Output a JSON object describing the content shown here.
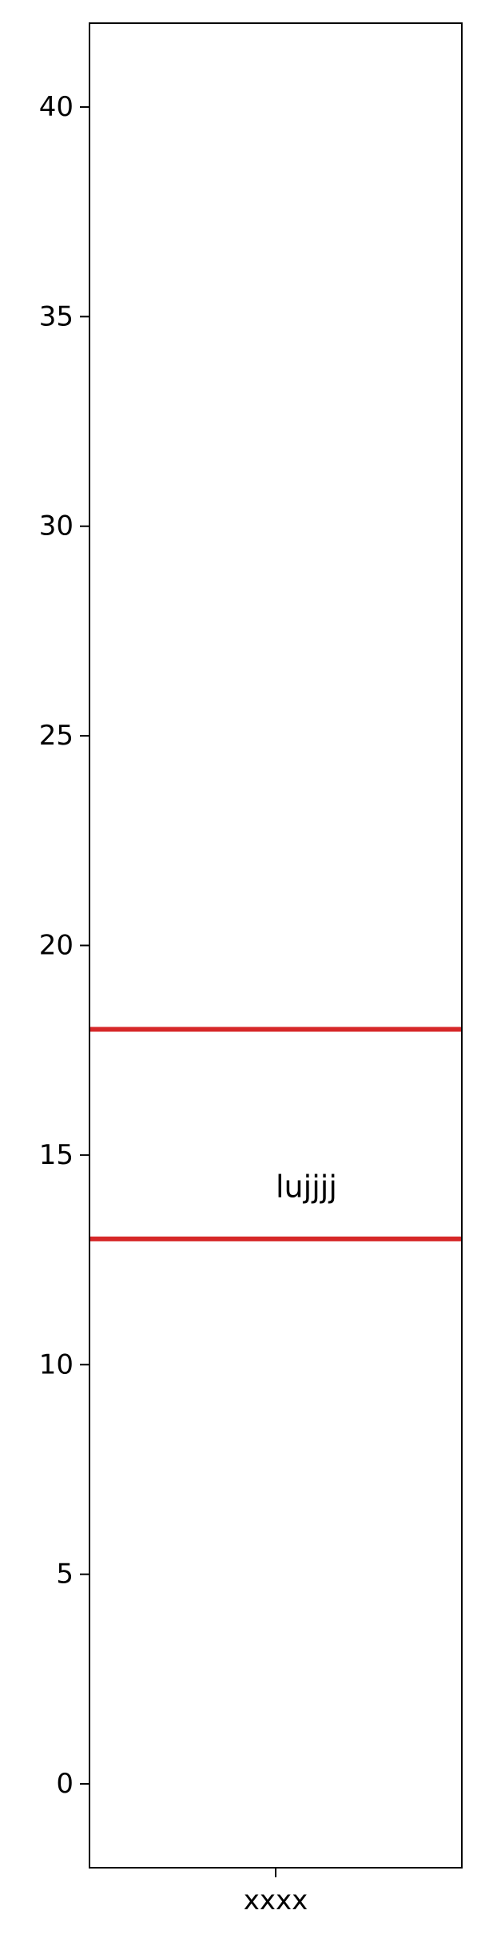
{
  "chart_data": {
    "type": "line",
    "title": "",
    "xlabel": "",
    "ylabel": "",
    "categories": [
      "xxxx"
    ],
    "ylim": [
      -2,
      42
    ],
    "yticks": [
      0,
      5,
      10,
      15,
      20,
      25,
      30,
      35,
      40
    ],
    "grid": false,
    "lines": [
      {
        "orientation": "horizontal",
        "y": 18,
        "color": "#d62728"
      },
      {
        "orientation": "horizontal",
        "y": 13,
        "color": "#d62728"
      }
    ],
    "annotations": [
      {
        "text": "lujjjj",
        "x": "xxxx",
        "y": 14
      }
    ]
  }
}
